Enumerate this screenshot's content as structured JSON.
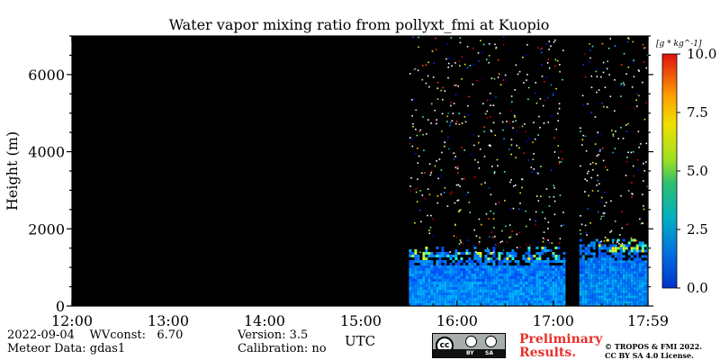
{
  "chart_data": {
    "type": "heatmap",
    "title": "Water vapor mixing ratio from pollyxt_fmi at Kuopio",
    "xlabel": "UTC",
    "ylabel": "Height (m)",
    "x_ticks": [
      "12:00",
      "13:00",
      "14:00",
      "15:00",
      "16:00",
      "17:00",
      "17:59"
    ],
    "x_tick_hours": [
      12,
      13,
      14,
      15,
      16,
      17,
      17.983
    ],
    "xlim_hours": [
      12,
      17.983
    ],
    "y_ticks": [
      "0",
      "2000",
      "4000",
      "6000"
    ],
    "y_tick_values": [
      0,
      2000,
      4000,
      6000
    ],
    "ylim": [
      0,
      7000
    ],
    "colorbar": {
      "unit_label": "[g * kg^-1]",
      "ticks": [
        "0.0",
        "2.5",
        "5.0",
        "7.5",
        "10.0"
      ],
      "tick_values": [
        0,
        2.5,
        5.0,
        7.5,
        10.0
      ],
      "range": [
        0,
        10
      ],
      "colormap": "jet"
    },
    "no_data_color": "#000000",
    "regions": [
      {
        "description": "no data",
        "t_start": 12.0,
        "t_end": 15.5
      },
      {
        "description": "boundary layer",
        "t_start": 15.5,
        "t_end": 17.1,
        "height_top_m": 1400,
        "mixing_ratio_range": [
          1.5,
          3.0
        ]
      },
      {
        "description": "gap",
        "t_start": 17.1,
        "t_end": 17.27
      },
      {
        "description": "boundary layer",
        "t_start": 17.27,
        "t_end": 17.983,
        "height_top_m": 1600,
        "mixing_ratio_range": [
          1.5,
          3.0
        ]
      }
    ]
  },
  "footer": {
    "date": "2022-09-04",
    "wvconst_label": "WVconst:",
    "wvconst_value": "6.70",
    "meteor": "Meteor Data: gdas1",
    "version": "Version: 3.5",
    "calibration": "Calibration: no",
    "license_badge": {
      "by": "BY",
      "sa": "SA"
    },
    "preliminary_line1": "Preliminary",
    "preliminary_line2": "Results.",
    "copyright_line1": "© TROPOS & FMI 2022.",
    "copyright_line2": "CC BY SA 4.0 License."
  }
}
